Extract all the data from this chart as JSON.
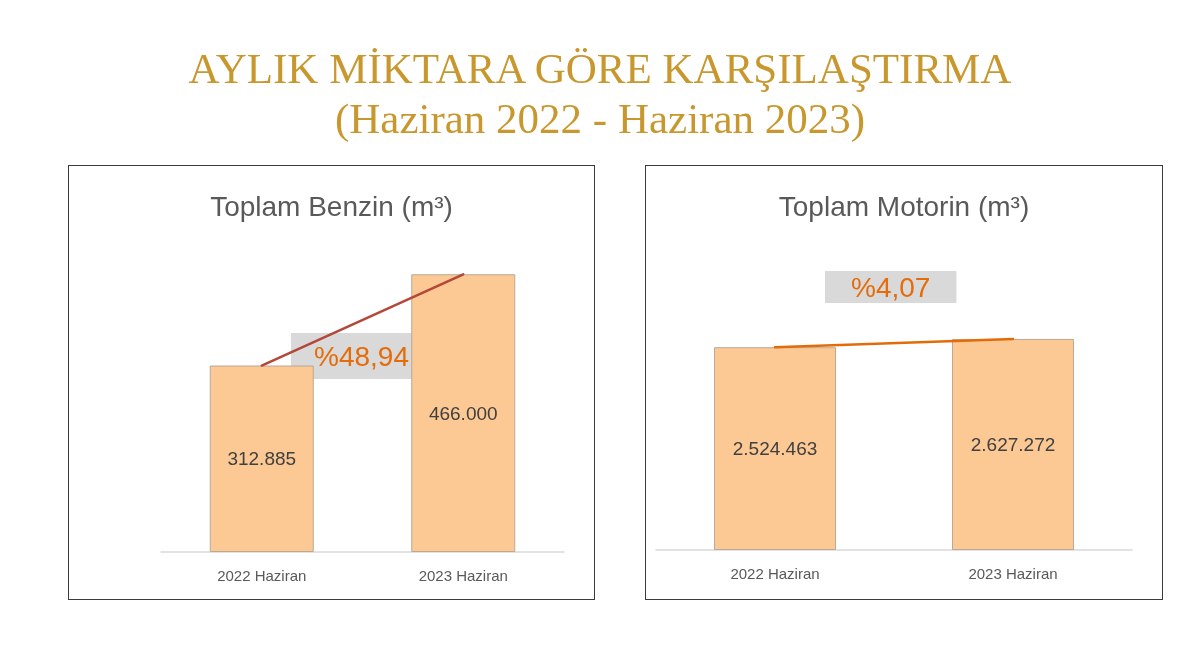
{
  "chart_data": [
    {
      "type": "bar",
      "title": "Toplam Benzin (m³)",
      "categories": [
        "2022 Haziran",
        "2023 Haziran"
      ],
      "series": [
        {
          "color": "#fcc893",
          "values": [
            312885,
            466000
          ],
          "value_labels": [
            "312.885",
            "466.000"
          ]
        },
        {
          "type": "line",
          "color": "#b5473a",
          "values": [
            312885,
            466000
          ]
        }
      ],
      "annotations": [
        "AYLIK MİKTARA GÖRE KARŞILAŞTIRMA",
        "(Haziran 2022 - Haziran 2023)",
        "%48,94"
      ],
      "tick_labels": "x",
      "marker": "none"
    },
    {
      "type": "bar",
      "title": "Toplam Motorin (m³)",
      "categories": [
        "2022 Haziran",
        "2023 Haziran"
      ],
      "series": [
        {
          "color": "#fcc893",
          "values": [
            2524463,
            2627272
          ],
          "value_labels": [
            "2.524.463",
            "2.627.272"
          ]
        },
        {
          "type": "line",
          "color": "#e36c09",
          "values": [
            2524463,
            2627272
          ]
        }
      ],
      "annotations": [
        "%4,07"
      ],
      "tick_labels": "x",
      "marker": "none"
    }
  ]
}
